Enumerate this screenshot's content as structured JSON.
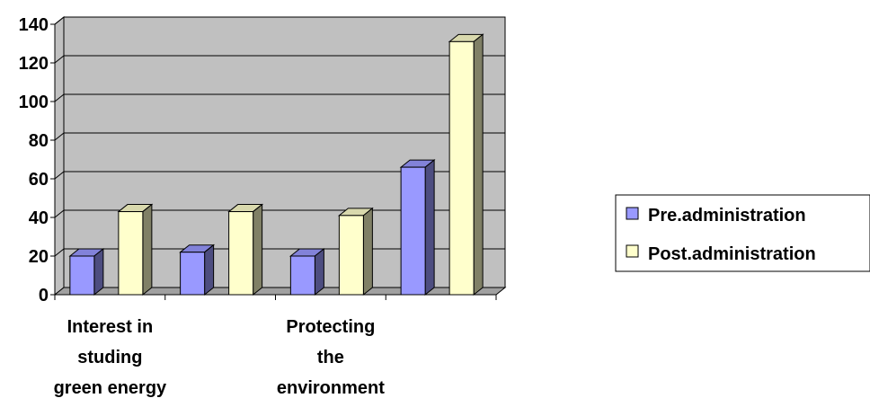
{
  "chart_data": {
    "type": "bar",
    "title": "",
    "xlabel": "",
    "ylabel": "",
    "ylim": [
      0,
      140
    ],
    "yticks": [
      0,
      20,
      40,
      60,
      80,
      100,
      120,
      140
    ],
    "grid": true,
    "style": "3d",
    "legend_position": "right",
    "categories": [
      "Interest in studing green energy",
      "",
      "Protecting the environment",
      ""
    ],
    "category_label_lines": [
      [
        "Interest in",
        "studing",
        "green energy"
      ],
      [],
      [
        "Protecting",
        "the",
        "environment"
      ],
      []
    ],
    "series": [
      {
        "name": "Pre.administration",
        "color": "#9999ff",
        "values": [
          20,
          22,
          20,
          66
        ]
      },
      {
        "name": "Post.administration",
        "color": "#ffffcc",
        "values": [
          43,
          43,
          41,
          131
        ]
      }
    ]
  }
}
